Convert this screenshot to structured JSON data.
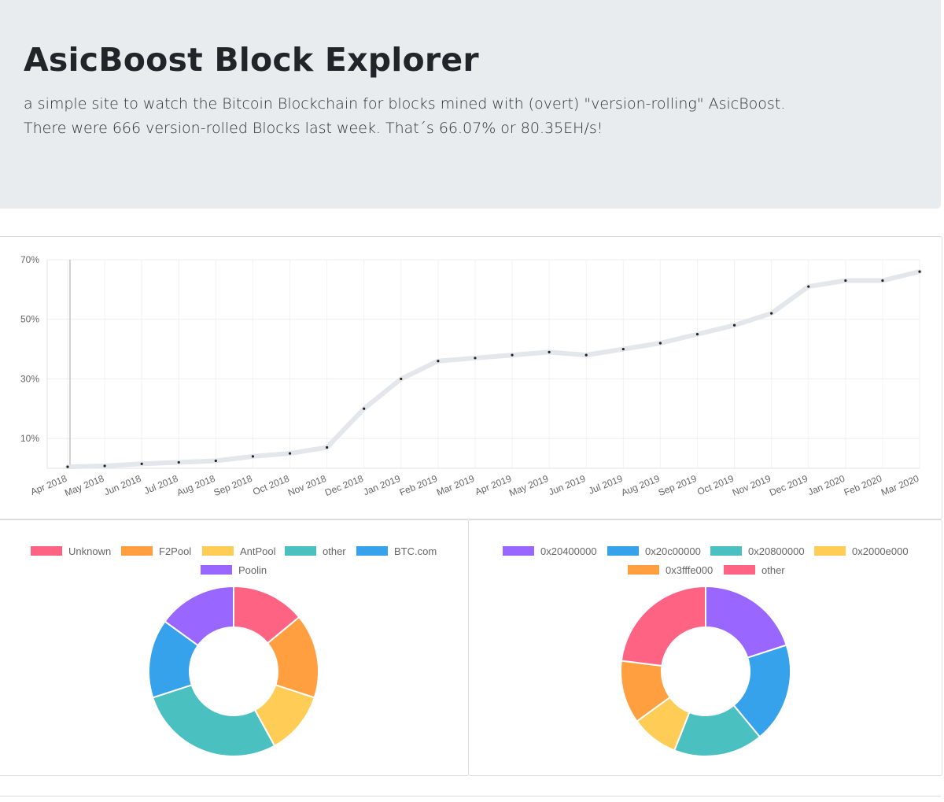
{
  "header": {
    "title": "AsicBoost Block Explorer",
    "subtitle": "a simple site to watch the Bitcoin Blockchain for blocks mined with (overt) \"version-rolling\" AsicBoost.",
    "stats_line": "There were 666 version-rolled Blocks last week. That´s 66.07% or 80.35EH/s!"
  },
  "chart_data": [
    {
      "type": "line",
      "title": "",
      "xlabel": "",
      "ylabel": "",
      "ylim": [
        0,
        70
      ],
      "yticks": [
        "10%",
        "30%",
        "50%",
        "70%"
      ],
      "ytick_values": [
        10,
        30,
        50,
        70
      ],
      "grid": true,
      "color": "#e3e6ea",
      "x": [
        "Apr 2018",
        "May 2018",
        "Jun 2018",
        "Jul 2018",
        "Aug 2018",
        "Sep 2018",
        "Oct 2018",
        "Nov 2018",
        "Dec 2018",
        "Jan 2019",
        "Feb 2019",
        "Mar 2019",
        "Apr 2019",
        "May 2019",
        "Jun 2019",
        "Jul 2019",
        "Aug 2019",
        "Sep 2019",
        "Oct 2019",
        "Nov 2019",
        "Dec 2019",
        "Jan 2020",
        "Feb 2020",
        "Mar 2020"
      ],
      "series": [
        {
          "values": [
            0.5,
            0.8,
            1.5,
            2,
            2.5,
            4,
            5,
            7,
            20,
            30,
            36,
            37,
            38,
            39,
            38,
            40,
            42,
            45,
            48,
            52,
            61,
            63,
            63,
            66
          ]
        }
      ]
    },
    {
      "type": "pie",
      "legend": "top",
      "labels": [
        "Unknown",
        "F2Pool",
        "AntPool",
        "other",
        "BTC.com",
        "Poolin"
      ],
      "values": [
        14,
        16,
        12,
        28,
        15,
        15
      ],
      "colors": [
        "#ff6384",
        "#ff9f40",
        "#ffcd56",
        "#4bc0c0",
        "#36a2eb",
        "#9966ff"
      ]
    },
    {
      "type": "pie",
      "legend": "top",
      "labels": [
        "0x20400000",
        "0x20c00000",
        "0x20800000",
        "0x2000e000",
        "0x3fffe000",
        "other"
      ],
      "values": [
        20,
        19,
        17,
        9,
        12,
        23
      ],
      "colors": [
        "#9966ff",
        "#36a2eb",
        "#4bc0c0",
        "#ffcd56",
        "#ff9f40",
        "#ff6384"
      ]
    }
  ]
}
